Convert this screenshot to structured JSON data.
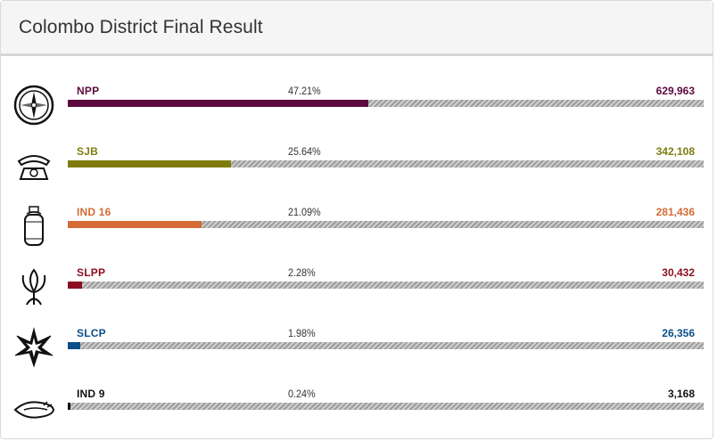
{
  "header": {
    "title": "Colombo District Final Result"
  },
  "chart_data": {
    "type": "bar",
    "orientation": "horizontal",
    "title": "Colombo District Final Result",
    "categories": [
      "NPP",
      "SJB",
      "IND 16",
      "SLPP",
      "SLCP",
      "IND 9"
    ],
    "percent_labels": [
      "47.21%",
      "25.64%",
      "21.09%",
      "2.28%",
      "1.98%",
      "0.24%"
    ],
    "percent_values": [
      47.21,
      25.64,
      21.09,
      2.28,
      1.98,
      0.24
    ],
    "votes_labels": [
      "629,963",
      "342,108",
      "281,436",
      "30,432",
      "26,356",
      "3,168"
    ],
    "votes": [
      629963,
      342108,
      281436,
      30432,
      26356,
      3168
    ],
    "colors": [
      "#5c0a3e",
      "#7f7c0d",
      "#d46b37",
      "#8a0f22",
      "#0b4f8a",
      "#111111"
    ],
    "symbols": [
      "compass-icon",
      "telephone-icon",
      "gas-cylinder-icon",
      "lotus-bud-icon",
      "star-icon",
      "conch-shell-icon"
    ],
    "xlim": [
      0,
      100
    ]
  }
}
